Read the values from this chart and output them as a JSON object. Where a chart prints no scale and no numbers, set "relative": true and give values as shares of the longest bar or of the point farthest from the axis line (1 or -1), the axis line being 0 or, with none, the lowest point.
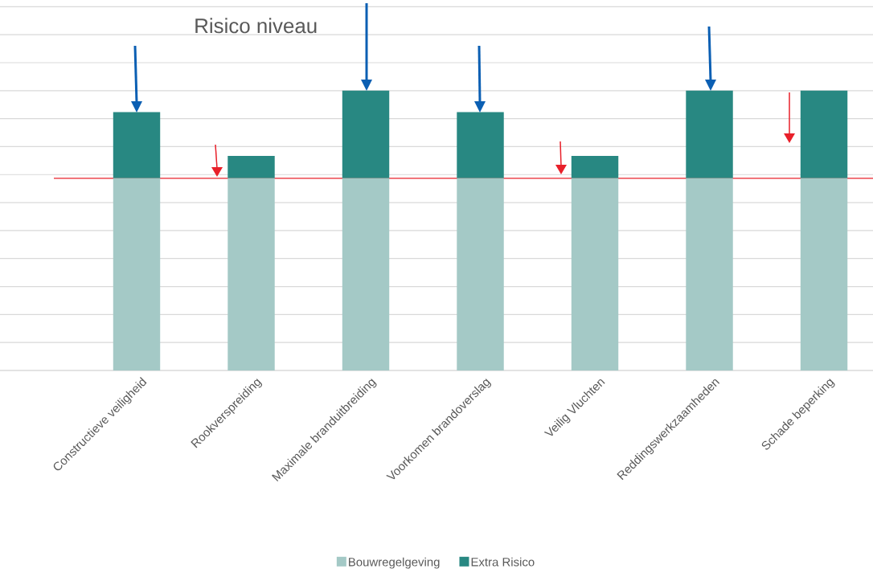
{
  "chart_data": {
    "type": "bar",
    "title": "Risico niveau",
    "stacked": true,
    "relative": true,
    "grid": "y",
    "legend": "bottom",
    "categories": [
      "Constructieve veiligheid",
      "Rookverspreiding",
      "Maximale branduitbreiding",
      "Voorkomen brandoverslag",
      "Veilig Vluchten",
      "Reddingswerkzaamheden",
      "Schade beperking"
    ],
    "series": [
      {
        "name": "Bouwregelgeving",
        "color": "#a4c9c6",
        "values": [
          0.687,
          0.687,
          0.687,
          0.687,
          0.687,
          0.687,
          0.687
        ]
      },
      {
        "name": "Extra Risico",
        "color": "#288882",
        "values": [
          0.236,
          0.08,
          0.313,
          0.236,
          0.08,
          0.313,
          0.313
        ]
      }
    ],
    "ref_lines": [
      {
        "axis": "y",
        "value": 0.687,
        "color": "#e8202a"
      }
    ]
  }
}
